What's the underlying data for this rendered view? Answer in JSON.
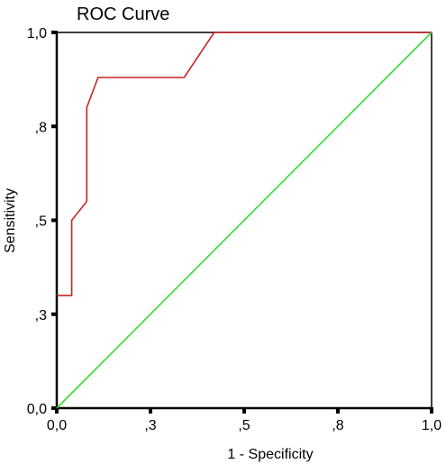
{
  "chart_data": {
    "type": "line",
    "title": "ROC Curve",
    "xlabel": "1 - Specificity",
    "ylabel": "Sensitivity",
    "xlim": [
      0,
      1
    ],
    "ylim": [
      0,
      1
    ],
    "x_ticks": [
      0,
      0.25,
      0.5,
      0.75,
      1
    ],
    "x_tick_labels": [
      "0,0",
      ",3",
      ",5",
      ",8",
      "1,0"
    ],
    "y_ticks": [
      0,
      0.25,
      0.5,
      0.75,
      1
    ],
    "y_tick_labels": [
      "0,0",
      ",3",
      ",5",
      ",8",
      "1,0"
    ],
    "grid": false,
    "series": [
      {
        "color": "#cc2222",
        "points": [
          [
            0.0,
            0.3
          ],
          [
            0.0,
            0.3
          ],
          [
            0.04,
            0.3
          ],
          [
            0.04,
            0.5
          ],
          [
            0.08,
            0.55
          ],
          [
            0.08,
            0.8
          ],
          [
            0.11,
            0.88
          ],
          [
            0.34,
            0.88
          ],
          [
            0.42,
            1.0
          ],
          [
            1.0,
            1.0
          ]
        ]
      },
      {
        "color": "#33dd33",
        "points": [
          [
            0,
            0
          ],
          [
            1,
            1
          ]
        ]
      }
    ]
  }
}
